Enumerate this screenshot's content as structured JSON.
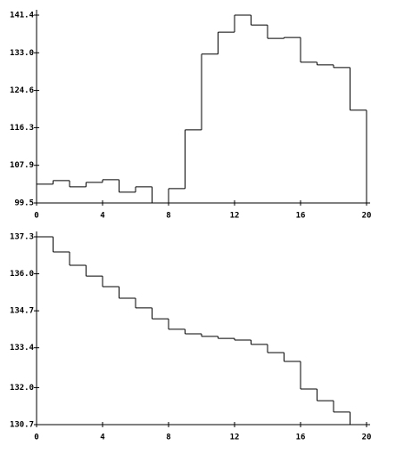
{
  "chart_data": [
    {
      "type": "step",
      "x": [
        0,
        1,
        2,
        3,
        4,
        5,
        6,
        7,
        8,
        9,
        10,
        11,
        12,
        13,
        14,
        15,
        16,
        17,
        18,
        19
      ],
      "values": [
        103.7,
        104.5,
        103.1,
        104.1,
        104.7,
        101.9,
        103.1,
        99.5,
        102.7,
        115.8,
        132.7,
        137.6,
        141.4,
        139.2,
        136.2,
        136.4,
        130.9,
        130.3,
        129.7,
        120.2
      ],
      "color": "#000000",
      "xlim": [
        0,
        20
      ],
      "xticks": [
        0,
        4,
        8,
        12,
        16,
        20
      ],
      "ylim": [
        99.5,
        141.4
      ],
      "yticks": [
        99.5,
        107.9,
        116.3,
        124.6,
        {
          "value": 133.0,
          "label": "133.0"
        },
        141.4
      ]
    },
    {
      "type": "step",
      "x": [
        0,
        1,
        2,
        3,
        4,
        5,
        6,
        7,
        8,
        9,
        10,
        11,
        12,
        13,
        14,
        15,
        16,
        17,
        18
      ],
      "values": [
        137.3,
        136.77,
        136.3,
        135.92,
        135.55,
        135.14,
        134.8,
        134.42,
        134.05,
        133.89,
        133.8,
        133.73,
        133.67,
        133.52,
        133.23,
        132.92,
        131.95,
        131.54,
        131.14
      ],
      "color": "#000000",
      "xlim": [
        0,
        20
      ],
      "xticks": [
        0,
        4,
        8,
        12,
        16,
        20
      ],
      "ylim": [
        130.7,
        137.3
      ],
      "yticks": [
        130.7,
        {
          "value": 132.0,
          "label": "132.0"
        },
        133.4,
        134.7,
        {
          "value": 136.0,
          "label": "136.0"
        },
        137.3
      ]
    }
  ]
}
